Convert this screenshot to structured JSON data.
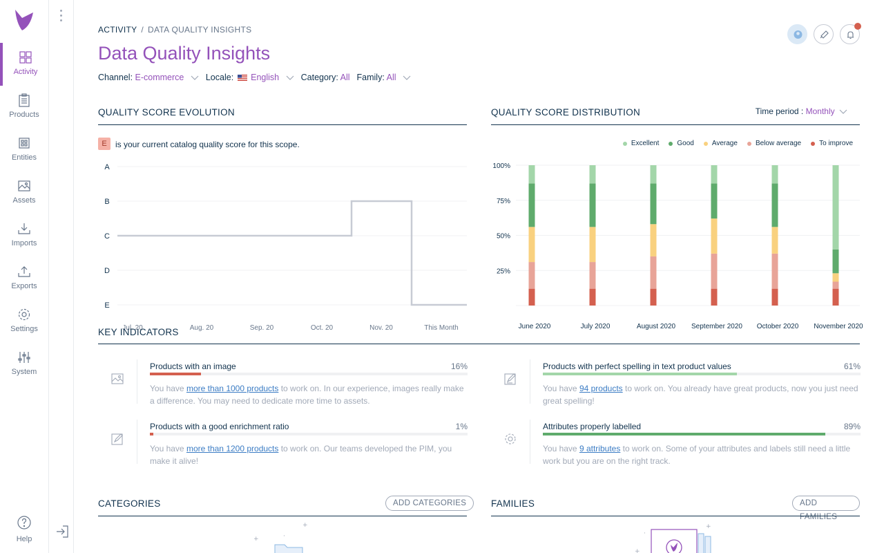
{
  "nav": {
    "items": [
      {
        "label": "Activity",
        "icon": "activity-icon"
      },
      {
        "label": "Products",
        "icon": "products-icon"
      },
      {
        "label": "Entities",
        "icon": "entities-icon"
      },
      {
        "label": "Assets",
        "icon": "assets-icon"
      },
      {
        "label": "Imports",
        "icon": "imports-icon"
      },
      {
        "label": "Exports",
        "icon": "exports-icon"
      },
      {
        "label": "Settings",
        "icon": "settings-icon"
      },
      {
        "label": "System",
        "icon": "system-icon"
      }
    ],
    "help_label": "Help"
  },
  "breadcrumb": {
    "parent": "ACTIVITY",
    "sep": "/",
    "current": "DATA QUALITY INSIGHTS"
  },
  "page_title": "Data Quality Insights",
  "filters": {
    "channel_label": "Channel:",
    "channel_value": "E-commerce",
    "locale_label": "Locale:",
    "locale_value": "English",
    "category_label": "Category:",
    "category_value": "All",
    "family_label": "Family:",
    "family_value": "All"
  },
  "evolution": {
    "title": "QUALITY SCORE EVOLUTION",
    "score_badge": "E",
    "score_text": "is your current catalog quality score for this scope.",
    "chart_data": {
      "type": "line",
      "x": [
        "Jul. 20",
        "Aug. 20",
        "Sep. 20",
        "Oct. 20",
        "Nov. 20",
        "This Month"
      ],
      "y_categories": [
        "A",
        "B",
        "C",
        "D",
        "E"
      ],
      "values": [
        "C",
        "C",
        "C",
        "C",
        "B",
        "E"
      ],
      "step": true,
      "color": "#c7cbd4"
    }
  },
  "distribution": {
    "title": "QUALITY SCORE DISTRIBUTION",
    "time_period_label": "Time period :",
    "time_period_value": "Monthly",
    "chart_data": {
      "type": "bar",
      "stacked": true,
      "categories": [
        "June 2020",
        "July 2020",
        "August 2020",
        "September 2020",
        "October 2020",
        "November 2020"
      ],
      "y_ticks": [
        "100%",
        "75%",
        "50%",
        "25%"
      ],
      "ylim": [
        0,
        100
      ],
      "series": [
        {
          "name": "To improve",
          "color": "#d4604f",
          "values": [
            12,
            12,
            12,
            12,
            12,
            12
          ]
        },
        {
          "name": "Below average",
          "color": "#e8a498",
          "values": [
            19,
            19,
            23,
            25,
            25,
            5
          ]
        },
        {
          "name": "Average",
          "color": "#f9d17f",
          "values": [
            25,
            25,
            23,
            25,
            19,
            6
          ]
        },
        {
          "name": "Good",
          "color": "#5fab6c",
          "values": [
            31,
            31,
            29,
            25,
            31,
            17
          ]
        },
        {
          "name": "Excellent",
          "color": "#a3d6a9",
          "values": [
            13,
            13,
            13,
            13,
            13,
            60
          ]
        }
      ],
      "legend_order": [
        "Excellent",
        "Good",
        "Average",
        "Below average",
        "To improve"
      ],
      "legend_position": "top-right"
    }
  },
  "key_indicators": {
    "title": "KEY INDICATORS",
    "items": [
      {
        "title": "Products with an image",
        "percent": "16%",
        "value": 16,
        "color": "#d4604f",
        "icon": "image-icon",
        "desc_pre": "You have ",
        "link": "more than 1000 products",
        "desc_post": " to work on. In our experience, images really make a difference. You may need to dedicate more time to assets."
      },
      {
        "title": "Products with perfect spelling in text product values",
        "percent": "61%",
        "value": 61,
        "color": "#a3d6a9",
        "icon": "spelling-icon",
        "desc_pre": "You have ",
        "link": "94 products",
        "desc_post": " to work on. You already have great products, now you just need great spelling!"
      },
      {
        "title": "Products with a good enrichment ratio",
        "percent": "1%",
        "value": 1,
        "color": "#d4604f",
        "icon": "enrichment-icon",
        "desc_pre": "You have ",
        "link": "more than 1200 products",
        "desc_post": " to work on. Our teams developed the PIM, you make it alive!"
      },
      {
        "title": "Attributes properly labelled",
        "percent": "89%",
        "value": 89,
        "color": "#5fab6c",
        "icon": "gear-icon",
        "desc_pre": "You have ",
        "link": "9 attributes",
        "desc_post": " to work on. Some of your attributes and labels still need a little work but you are on the right track."
      }
    ]
  },
  "categories": {
    "title": "CATEGORIES",
    "button": "ADD CATEGORIES"
  },
  "families": {
    "title": "FAMILIES",
    "button": "ADD FAMILIES"
  }
}
